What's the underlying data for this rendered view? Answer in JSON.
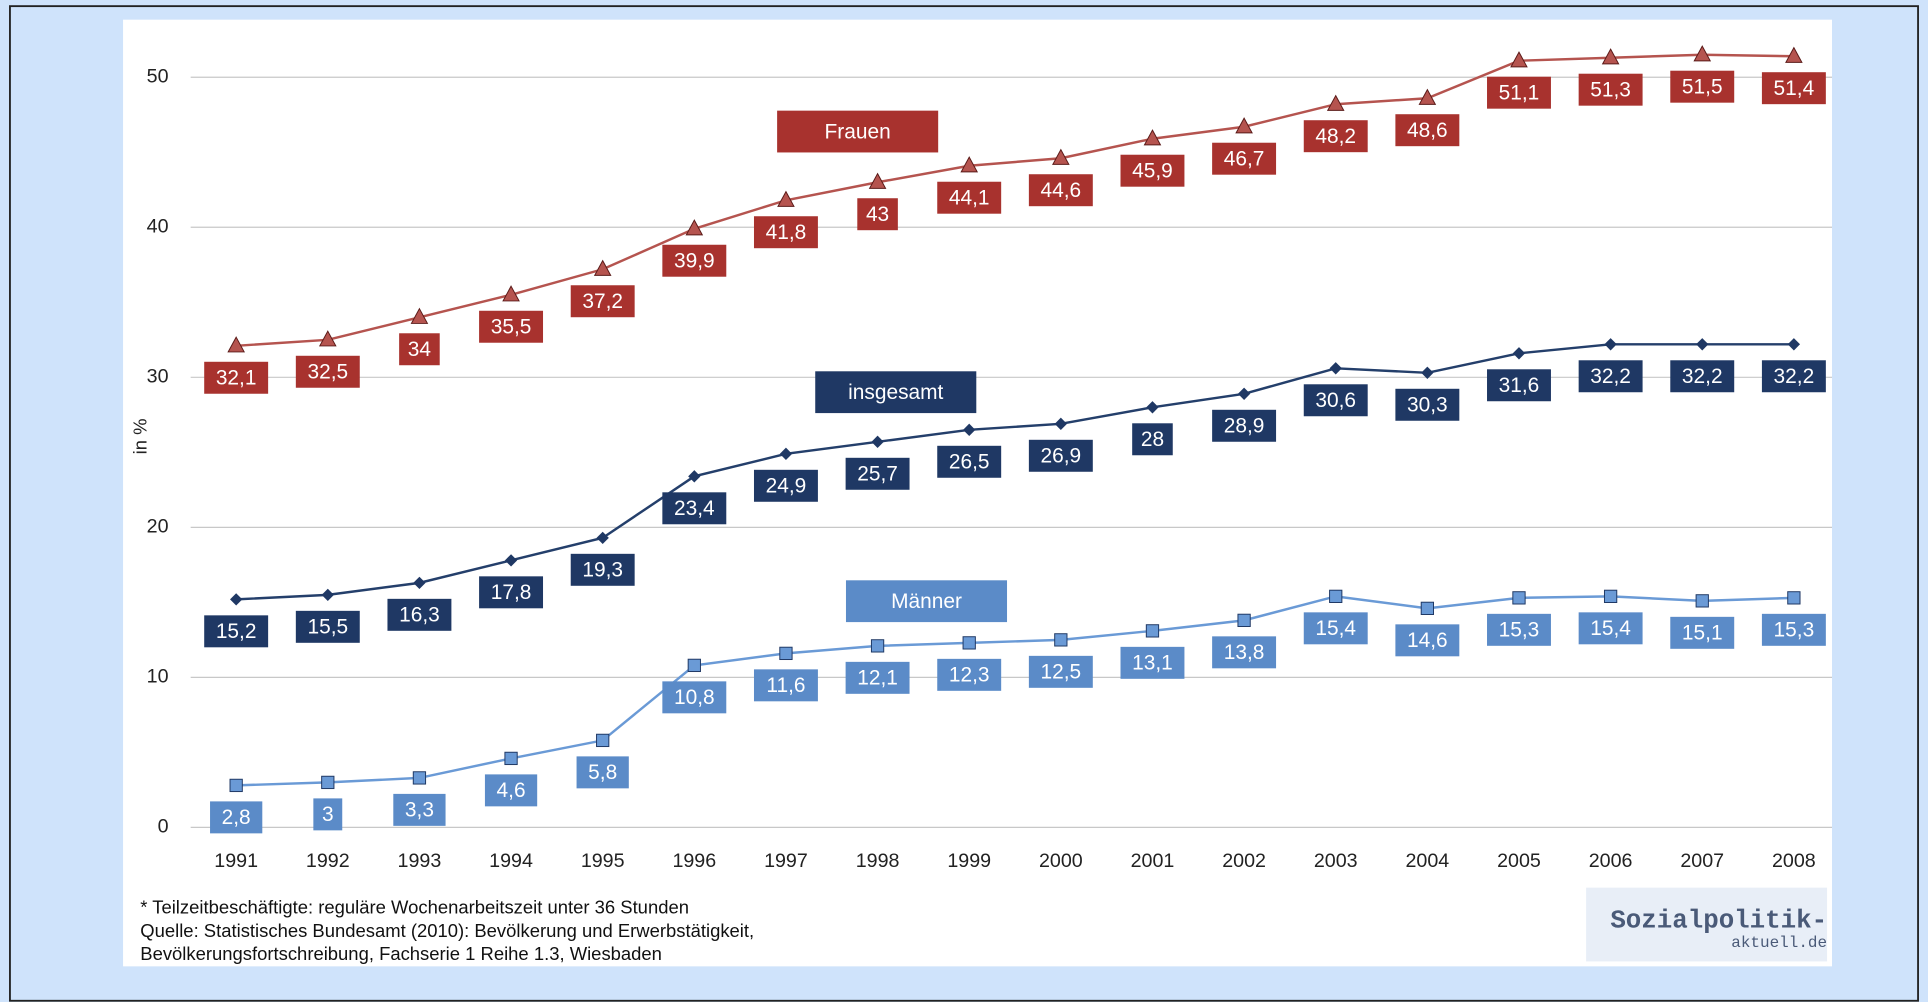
{
  "chart_data": {
    "type": "line",
    "y_label": "in %",
    "categories": [
      "1991",
      "1992",
      "1993",
      "1994",
      "1995",
      "1996",
      "1997",
      "1998",
      "1999",
      "2000",
      "2001",
      "2002",
      "2003",
      "2004",
      "2005",
      "2006",
      "2007",
      "2008"
    ],
    "series": [
      {
        "name": "Frauen",
        "color": "#a8322e",
        "line_color": "#b5544f",
        "values": [
          32.1,
          32.5,
          34,
          35.5,
          37.2,
          39.9,
          41.8,
          43,
          44.1,
          44.6,
          45.9,
          46.7,
          48.2,
          48.6,
          51.1,
          51.3,
          51.5,
          51.4
        ],
        "value_labels": [
          "32,1",
          "32,5",
          "34",
          "35,5",
          "37,2",
          "39,9",
          "41,8",
          "43",
          "44,1",
          "44,6",
          "45,9",
          "46,7",
          "48,2",
          "48,6",
          "51,1",
          "51,3",
          "51,5",
          "51,4"
        ]
      },
      {
        "name": "insgesamt",
        "color": "#1f3864",
        "line_color": "#243f6b",
        "values": [
          15.2,
          15.5,
          16.3,
          17.8,
          19.3,
          23.4,
          24.9,
          25.7,
          26.5,
          26.9,
          28,
          28.9,
          30.6,
          30.3,
          31.6,
          32.2,
          32.2,
          32.2
        ],
        "value_labels": [
          "15,2",
          "15,5",
          "16,3",
          "17,8",
          "19,3",
          "23,4",
          "24,9",
          "25,7",
          "26,5",
          "26,9",
          "28",
          "28,9",
          "30,6",
          "30,3",
          "31,6",
          "32,2",
          "32,2",
          "32,2"
        ]
      },
      {
        "name": "Männer",
        "color": "#5b8bc8",
        "line_color": "#6a9ad6",
        "values": [
          2.8,
          3,
          3.3,
          4.6,
          5.8,
          10.8,
          11.6,
          12.1,
          12.3,
          12.5,
          13.1,
          13.8,
          15.4,
          14.6,
          15.3,
          15.4,
          15.1,
          15.3
        ],
        "value_labels": [
          "2,8",
          "3",
          "3,3",
          "4,6",
          "5,8",
          "10,8",
          "11,6",
          "12,1",
          "12,3",
          "12,5",
          "13,1",
          "13,8",
          "15,4",
          "14,6",
          "15,3",
          "15,4",
          "15,1",
          "15,3"
        ]
      }
    ],
    "ylim": [
      0,
      54
    ],
    "yticks": [
      0,
      10,
      20,
      30,
      40,
      50
    ],
    "grid": true,
    "notes": [
      "* Teilzeitbeschäftigte: reguläre Wochenarbeitszeit unter 36 Stunden",
      "Quelle:  Statistisches Bundesamt (2010): Bevölkerung und Erwerbstätigkeit,",
      "Bevölkerungsfortschreibung,  Fachserie 1 Reihe 1.3, Wiesbaden"
    ],
    "logo": [
      "Sozialpolitik-",
      "aktuell.de"
    ]
  }
}
